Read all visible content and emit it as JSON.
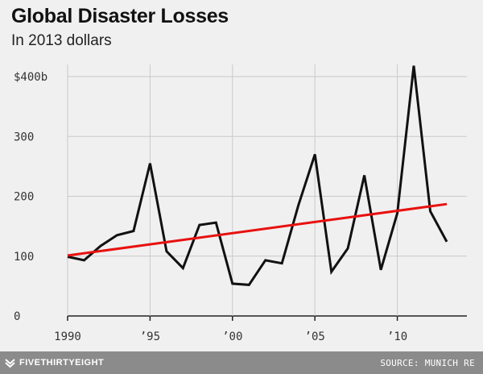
{
  "header": {
    "title": "Global Disaster Losses",
    "subtitle": "In 2013 dollars"
  },
  "footer": {
    "brand": "FIVETHIRTYEIGHT",
    "source": "SOURCE: MUNICH RE"
  },
  "chart_data": {
    "type": "line",
    "title": "Global Disaster Losses",
    "subtitle": "In 2013 dollars",
    "xlabel": "",
    "ylabel": "",
    "xlim": [
      1990,
      2013
    ],
    "ylim": [
      0,
      420
    ],
    "grid": true,
    "x_ticks": [
      {
        "value": 1990,
        "label": "1990"
      },
      {
        "value": 1995,
        "label": "’95"
      },
      {
        "value": 2000,
        "label": "’00"
      },
      {
        "value": 2005,
        "label": "’05"
      },
      {
        "value": 2010,
        "label": "’10"
      }
    ],
    "y_ticks": [
      {
        "value": 0,
        "label": "0"
      },
      {
        "value": 100,
        "label": "100"
      },
      {
        "value": 200,
        "label": "200"
      },
      {
        "value": 300,
        "label": "300"
      },
      {
        "value": 400,
        "label": "$400b"
      }
    ],
    "series": [
      {
        "color": "#111111",
        "x": [
          1990,
          1991,
          1992,
          1993,
          1994,
          1995,
          1996,
          1997,
          1998,
          1999,
          2000,
          2001,
          2002,
          2003,
          2004,
          2005,
          2006,
          2007,
          2008,
          2009,
          2010,
          2011,
          2012,
          2013
        ],
        "values": [
          99,
          93,
          117,
          135,
          142,
          255,
          108,
          80,
          152,
          156,
          54,
          52,
          93,
          88,
          185,
          270,
          74,
          113,
          235,
          77,
          172,
          418,
          175,
          124
        ]
      },
      {
        "color": "#e8110f",
        "x": [
          1990,
          2013
        ],
        "values": [
          101,
          187
        ]
      }
    ]
  }
}
